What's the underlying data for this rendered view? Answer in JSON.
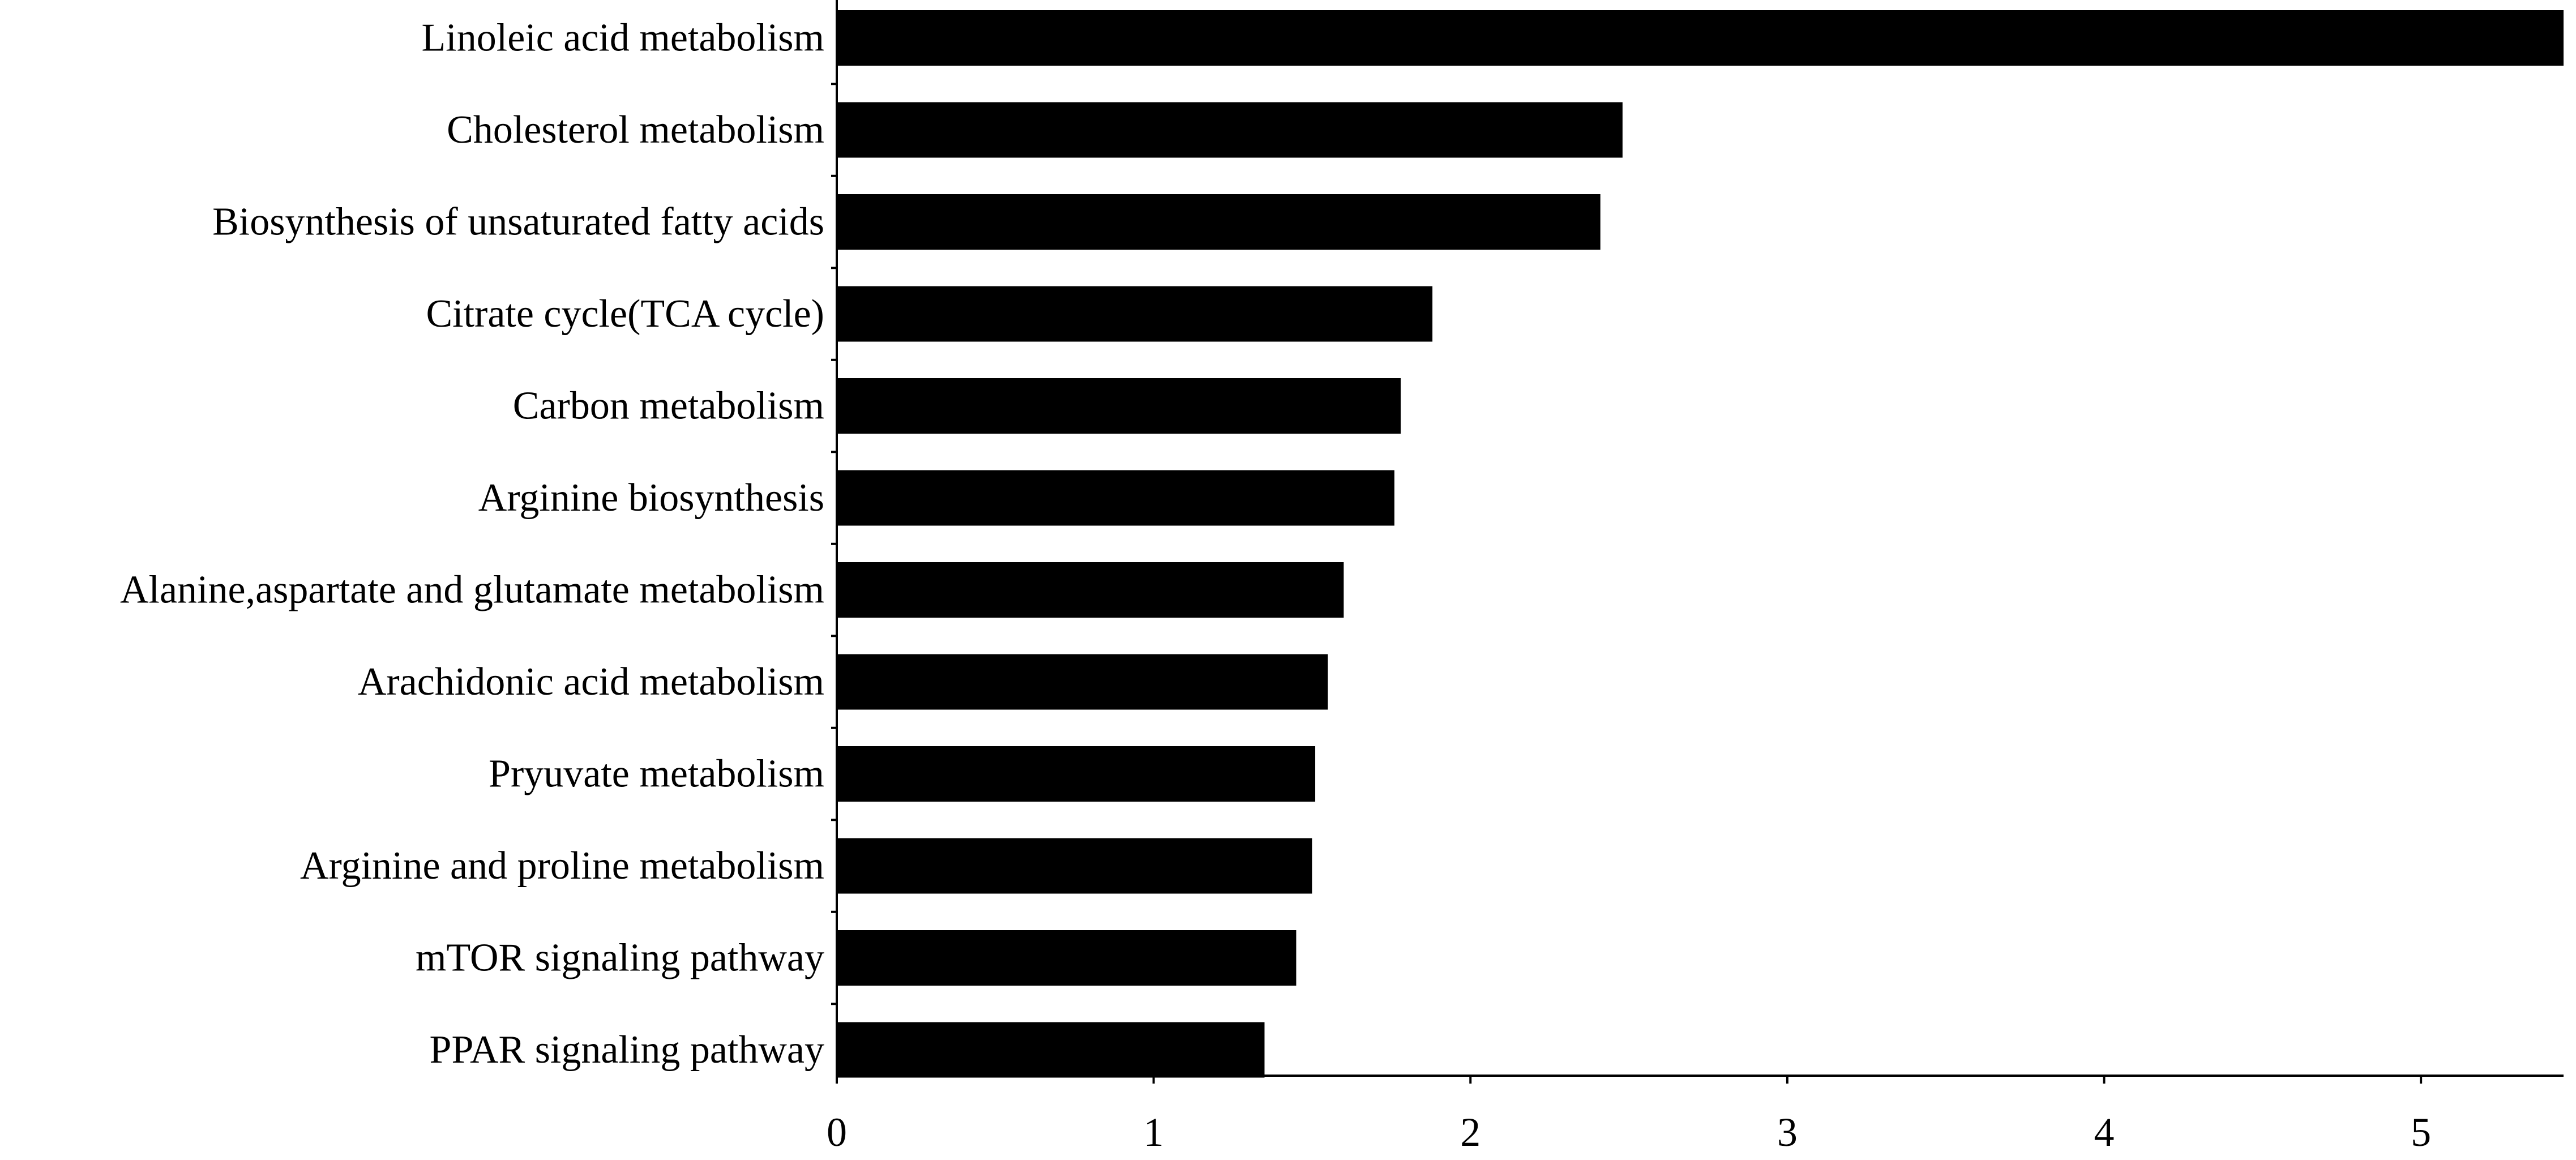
{
  "chart_data": {
    "type": "bar",
    "orientation": "horizontal",
    "title": "",
    "xlabel": "",
    "ylabel": "",
    "categories": [
      "Linoleic acid metabolism",
      "Cholesterol metabolism",
      "Biosynthesis of unsaturated fatty acids",
      "Citrate cycle(TCA cycle)",
      "Carbon metabolism",
      "Arginine biosynthesis",
      "Alanine,aspartate and glutamate metabolism",
      "Arachidonic acid metabolism",
      "Pryuvate metabolism",
      "Arginine and proline metabolism",
      "mTOR signaling pathway",
      "PPAR signaling pathway"
    ],
    "values": [
      5.45,
      2.48,
      2.41,
      1.88,
      1.78,
      1.76,
      1.6,
      1.55,
      1.51,
      1.5,
      1.45,
      1.35
    ],
    "xlim": [
      0,
      5.45
    ],
    "xticks": [
      "0",
      "1",
      "2",
      "3",
      "4",
      "5"
    ],
    "grid": false,
    "legend": "none",
    "bar_color": "#000000"
  }
}
